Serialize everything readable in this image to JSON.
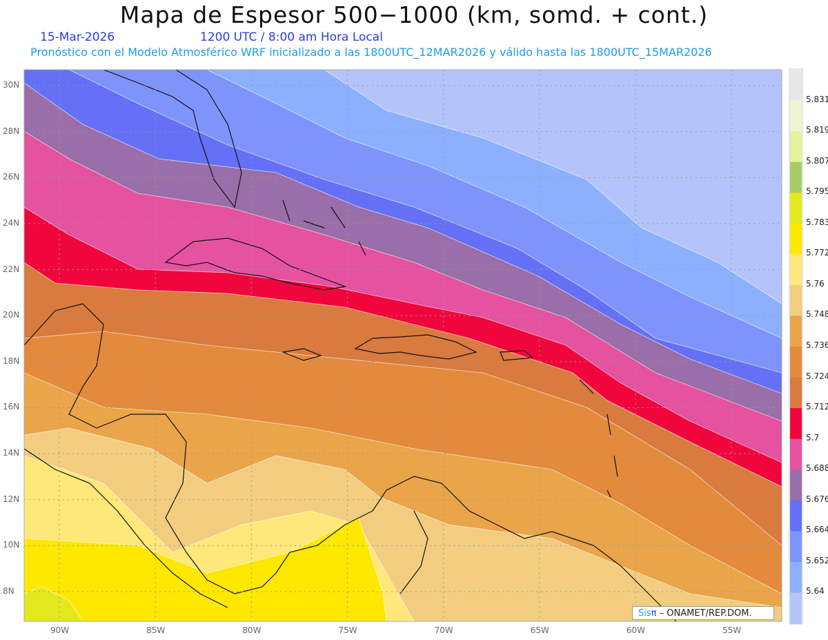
{
  "title": "Mapa de Espesor 500−1000 (km, somd. + cont.)",
  "date": "15-Mar-2026",
  "time": "1200 UTC / 8:00 am Hora Local",
  "subtitle": "Pronóstico con el Modelo Atmosférico WRF inicializado a las 1800UTC_12MAR2026 y válido hasta las  1800UTC_15MAR2026",
  "lon_ticks": [
    "90W",
    "85W",
    "80W",
    "75W",
    "70W",
    "65W",
    "60W",
    "55W"
  ],
  "lon_values": [
    -90,
    -85,
    -80,
    -75,
    -70,
    -65,
    -60,
    -55
  ],
  "lat_ticks": [
    "30N",
    "28N",
    "26N",
    "24N",
    "22N",
    "20N",
    "18N",
    "16N",
    "14N",
    "12N",
    "10N",
    "8N"
  ],
  "lat_values": [
    30,
    28,
    26,
    24,
    22,
    20,
    18,
    16,
    14,
    12,
    10,
    8
  ],
  "colorbar": {
    "labels": [
      "5.831",
      "5.819",
      "5.807",
      "5.795",
      "5.783",
      "5.772",
      "5.76",
      "5.748",
      "5.736",
      "5.724",
      "5.712",
      "5.7",
      "5.688",
      "5.676",
      "5.664",
      "5.652",
      "5.64"
    ],
    "colors": [
      "#e8e8e8",
      "#eef5d2",
      "#e3f29c",
      "#a8cc64",
      "#e2e81c",
      "#fee800",
      "#fee87a",
      "#f2cd80",
      "#eaa44a",
      "#e48a3c",
      "#d97a3e",
      "#f0063c",
      "#e552a0",
      "#9a6ea8",
      "#6470f6",
      "#7f93fc",
      "#8cb0ff",
      "#b4c4fb"
    ]
  },
  "credit": {
    "sis": "Sis",
    "pi": "π",
    "org": "– ONAMET/REP.DOM."
  }
}
